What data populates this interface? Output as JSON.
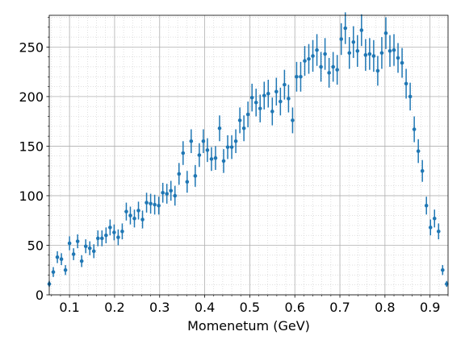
{
  "chart_data": {
    "type": "errorbar",
    "xlabel": "Momenetum (GeV)",
    "color": "#1f77b4",
    "xlim": [
      0.055,
      0.94
    ],
    "ylim": [
      0,
      282
    ],
    "xticks": [
      0.1,
      0.2,
      0.3,
      0.4,
      0.5,
      0.6,
      0.7,
      0.8,
      0.9
    ],
    "yticks": [
      0,
      50,
      100,
      150,
      200,
      250
    ],
    "xminorticks": [
      0.06,
      0.08,
      0.12,
      0.14,
      0.16,
      0.18,
      0.22,
      0.24,
      0.26,
      0.28,
      0.32,
      0.34,
      0.36,
      0.38,
      0.42,
      0.44,
      0.46,
      0.48,
      0.52,
      0.54,
      0.56,
      0.58,
      0.62,
      0.64,
      0.66,
      0.68,
      0.72,
      0.74,
      0.76,
      0.78,
      0.82,
      0.84,
      0.86,
      0.88,
      0.92,
      0.94
    ],
    "yminorticks": [
      10,
      20,
      30,
      40,
      60,
      70,
      80,
      90,
      110,
      120,
      130,
      140,
      160,
      170,
      180,
      190,
      210,
      220,
      230,
      240,
      260,
      270,
      280
    ],
    "grid": true,
    "minor_grid": true,
    "x": [
      0.055,
      0.064,
      0.073,
      0.082,
      0.091,
      0.1,
      0.109,
      0.118,
      0.127,
      0.136,
      0.145,
      0.154,
      0.163,
      0.172,
      0.181,
      0.19,
      0.199,
      0.208,
      0.217,
      0.226,
      0.235,
      0.244,
      0.253,
      0.262,
      0.271,
      0.28,
      0.289,
      0.298,
      0.307,
      0.316,
      0.325,
      0.334,
      0.343,
      0.352,
      0.361,
      0.37,
      0.379,
      0.388,
      0.397,
      0.406,
      0.415,
      0.424,
      0.433,
      0.442,
      0.451,
      0.46,
      0.469,
      0.478,
      0.487,
      0.496,
      0.505,
      0.514,
      0.523,
      0.532,
      0.541,
      0.55,
      0.559,
      0.568,
      0.577,
      0.586,
      0.595,
      0.604,
      0.613,
      0.622,
      0.631,
      0.64,
      0.649,
      0.658,
      0.667,
      0.676,
      0.685,
      0.694,
      0.703,
      0.712,
      0.721,
      0.73,
      0.739,
      0.748,
      0.757,
      0.766,
      0.775,
      0.784,
      0.793,
      0.802,
      0.811,
      0.82,
      0.829,
      0.838,
      0.847,
      0.856,
      0.865,
      0.874,
      0.883,
      0.892,
      0.901,
      0.91,
      0.919,
      0.928,
      0.937
    ],
    "values": [
      11,
      23,
      38,
      36,
      25,
      52,
      41,
      54,
      34,
      49,
      47,
      44,
      57,
      57,
      60,
      68,
      63,
      58,
      64,
      84,
      80,
      77,
      85,
      76,
      93,
      92,
      91,
      90,
      103,
      102,
      105,
      100,
      122,
      143,
      114,
      155,
      120,
      141,
      155,
      146,
      137,
      138,
      168,
      135,
      149,
      149,
      155,
      176,
      168,
      182,
      199,
      194,
      188,
      201,
      203,
      185,
      205,
      195,
      212,
      198,
      176,
      220,
      220,
      236,
      238,
      241,
      247,
      230,
      243,
      224,
      230,
      227,
      258,
      269,
      244,
      255,
      246,
      267,
      242,
      243,
      241,
      226,
      244,
      264,
      246,
      247,
      239,
      234,
      213,
      200,
      167,
      145,
      125,
      90,
      68,
      77,
      64,
      25,
      11
    ],
    "errors": [
      3,
      5,
      6,
      6,
      5,
      7,
      6,
      7,
      6,
      7,
      7,
      7,
      8,
      8,
      8,
      8,
      8,
      8,
      8,
      9,
      9,
      9,
      9,
      9,
      10,
      10,
      10,
      9,
      10,
      10,
      10,
      10,
      11,
      12,
      11,
      12,
      11,
      12,
      12,
      12,
      12,
      12,
      13,
      12,
      12,
      12,
      12,
      13,
      13,
      13,
      14,
      14,
      14,
      14,
      14,
      14,
      14,
      14,
      15,
      14,
      13,
      15,
      15,
      15,
      15,
      16,
      16,
      15,
      16,
      15,
      15,
      15,
      16,
      16,
      16,
      16,
      16,
      16,
      16,
      16,
      16,
      15,
      16,
      16,
      16,
      16,
      15,
      15,
      15,
      14,
      13,
      12,
      11,
      9,
      8,
      9,
      8,
      5,
      3
    ]
  }
}
